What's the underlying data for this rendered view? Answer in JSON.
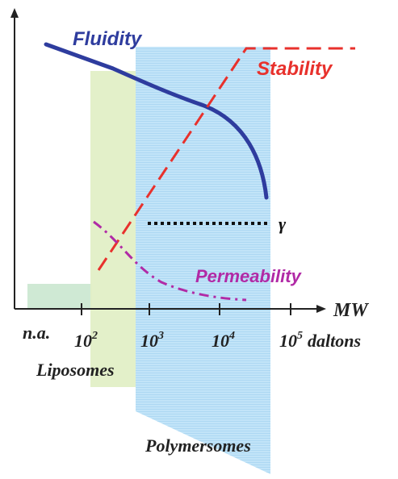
{
  "diagram": {
    "curves": {
      "fluidity": {
        "label": "Fluidity",
        "color": "#2e3c9e"
      },
      "stability": {
        "label": "Stability",
        "color": "#e8312c"
      },
      "permeability": {
        "label": "Permeability",
        "color": "#b12aa6"
      },
      "gamma": {
        "label": "γ",
        "color": "#111111"
      }
    },
    "axis": {
      "label": "MW",
      "ticks": [
        {
          "base": "n.a.",
          "exp": ""
        },
        {
          "base": "10",
          "exp": "2"
        },
        {
          "base": "10",
          "exp": "3"
        },
        {
          "base": "10",
          "exp": "4"
        },
        {
          "base": "10",
          "exp": "5"
        }
      ],
      "unit": "daltons"
    },
    "regions": {
      "liposomes": {
        "label": "Liposomes",
        "color": "#e2efc6"
      },
      "polymersomes": {
        "label": "Polymersomes",
        "color": "#b7def5"
      },
      "na_block": {
        "color": "#cfe9d4"
      }
    }
  }
}
